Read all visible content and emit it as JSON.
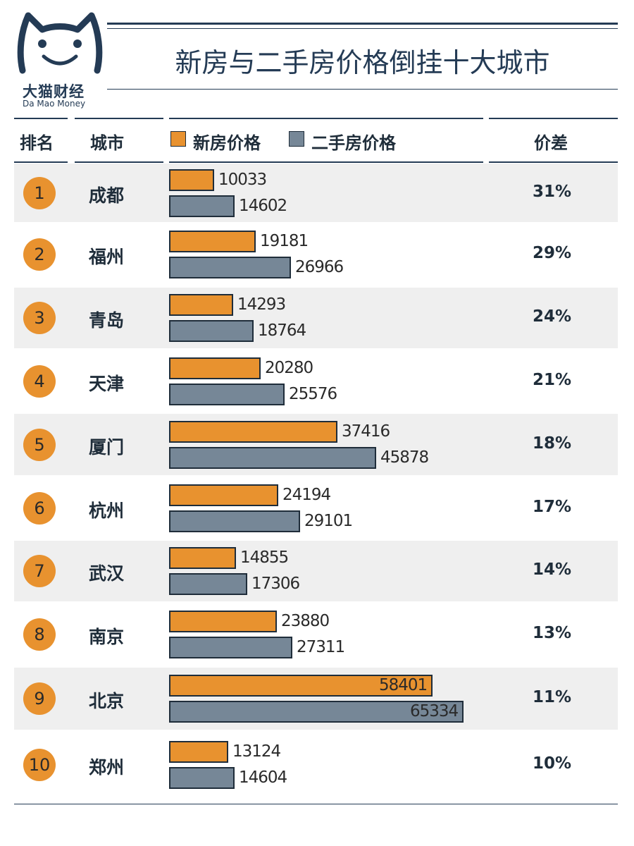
{
  "logo": {
    "cn": "大猫财经",
    "en": "Da Mao Money",
    "icon": "cat-face-icon"
  },
  "title": "新房与二手房价格倒挂十大城市",
  "header": {
    "rank": "排名",
    "city": "城市",
    "diff": "价差"
  },
  "colors": {
    "new": "#e8922f",
    "old": "#768797",
    "navy": "#243b55",
    "shade": "#efefef"
  },
  "chart_data": {
    "type": "bar",
    "orientation": "horizontal",
    "title": "新房与二手房价格倒挂十大城市",
    "categories": [
      "成都",
      "福州",
      "青岛",
      "天津",
      "厦门",
      "杭州",
      "武汉",
      "南京",
      "北京",
      "郑州"
    ],
    "ranks": [
      "1",
      "2",
      "3",
      "4",
      "5",
      "6",
      "7",
      "8",
      "9",
      "10"
    ],
    "series": [
      {
        "name": "新房价格",
        "values": [
          10033,
          19181,
          14293,
          20280,
          37416,
          24194,
          14855,
          23880,
          58401,
          13124
        ]
      },
      {
        "name": "二手房价格",
        "values": [
          14602,
          26966,
          18764,
          25576,
          45878,
          29101,
          17306,
          27311,
          65334,
          14604
        ]
      }
    ],
    "differences": [
      "31%",
      "29%",
      "24%",
      "21%",
      "18%",
      "17%",
      "14%",
      "13%",
      "11%",
      "10%"
    ],
    "grid": false,
    "legend_position": "top"
  }
}
